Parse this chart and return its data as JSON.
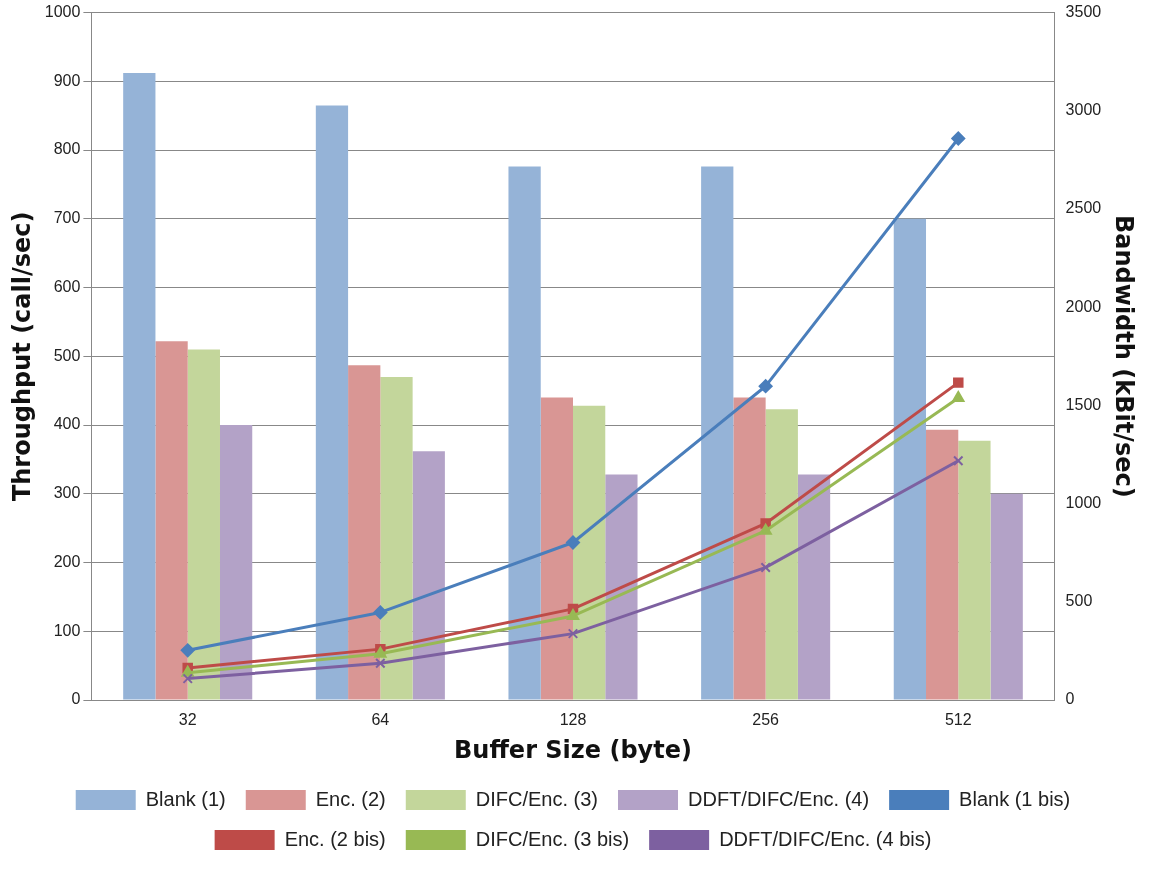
{
  "chart_data": {
    "type": "bar",
    "xlabel": "Buffer Size (byte)",
    "ylabel": "Throughput (call/sec)",
    "y2label": "Bandwidth (kBit/sec)",
    "categories": [
      "32",
      "64",
      "128",
      "256",
      "512"
    ],
    "series": [
      {
        "name": "Blank (1)",
        "color": "#95b3d7",
        "values": [
          912,
          865,
          776,
          776,
          700
        ]
      },
      {
        "name": "Enc. (2)",
        "color": "#d99694",
        "values": [
          522,
          487,
          440,
          440,
          393
        ]
      },
      {
        "name": "DIFC/Enc. (3)",
        "color": "#c3d69b",
        "values": [
          510,
          470,
          428,
          423,
          377
        ]
      },
      {
        "name": "DDFT/DIFC/Enc. (4)",
        "color": "#b3a2c7",
        "values": [
          400,
          362,
          328,
          328,
          300
        ]
      },
      {
        "name": "Blank (1 bis)",
        "type": "line",
        "axis": "y2",
        "marker": "diamond",
        "color": "#4a7ebb",
        "values": [
          253,
          446,
          802,
          1598,
          2859
        ]
      },
      {
        "name": "Enc. (2 bis)",
        "type": "line",
        "axis": "y2",
        "marker": "square",
        "color": "#be4b48",
        "values": [
          163,
          259,
          464,
          899,
          1616
        ]
      },
      {
        "name": "DIFC/Enc. (3 bis)",
        "type": "line",
        "axis": "y2",
        "marker": "triangle",
        "color": "#98b954",
        "values": [
          139,
          235,
          428,
          862,
          1538
        ]
      },
      {
        "name": "DDFT/DIFC/Enc. (4 bis)",
        "type": "line",
        "axis": "y2",
        "marker": "cross",
        "color": "#7d60a0",
        "values": [
          109,
          187,
          338,
          675,
          1218
        ]
      }
    ],
    "ylim": [
      0,
      1000
    ],
    "yticks": [
      0,
      100,
      200,
      300,
      400,
      500,
      600,
      700,
      800,
      900,
      1000
    ],
    "y2lim": [
      0,
      3500
    ],
    "y2ticks": [
      0,
      500,
      1000,
      1500,
      2000,
      2500,
      3000,
      3500
    ],
    "grid": "y",
    "legend": "bottom"
  }
}
